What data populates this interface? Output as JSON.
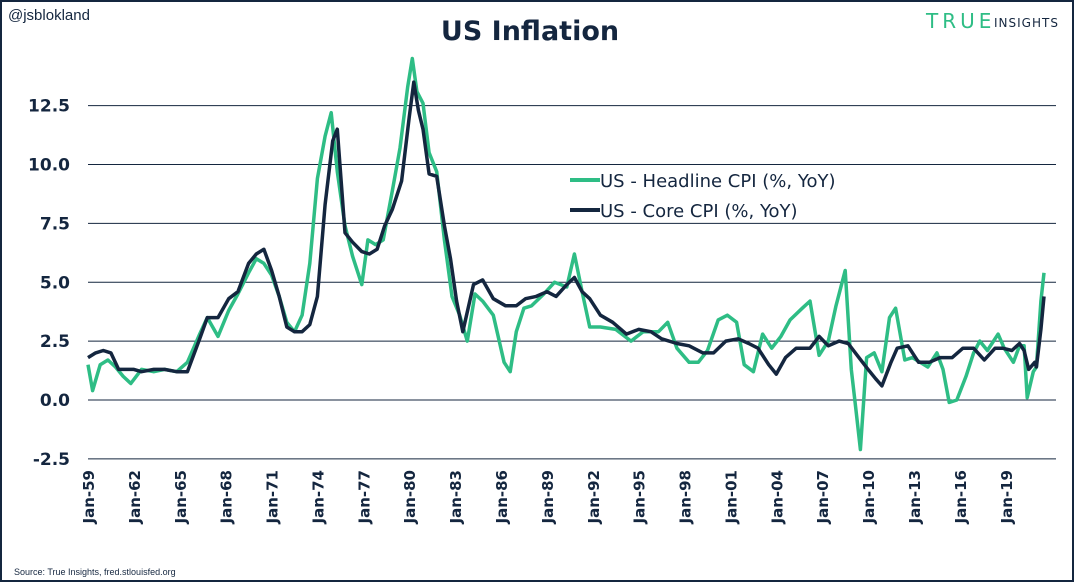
{
  "chart_data": {
    "type": "line",
    "title": "US Inflation",
    "handle": "@jsblokland",
    "logo": {
      "primary": "TRUE",
      "secondary": "INSIGHTS"
    },
    "source": "Source: True Insights, fred.stlouisfed.org",
    "ylim": [
      -2.5,
      15
    ],
    "yticks": [
      -2.5,
      0.0,
      2.5,
      5.0,
      7.5,
      10.0,
      12.5
    ],
    "ytick_labels": [
      "-2.5",
      "0.0",
      "2.5",
      "5.0",
      "7.5",
      "10.0",
      "12.5"
    ],
    "xlim": [
      1959,
      2021.5
    ],
    "xticks": [
      1959,
      1962,
      1965,
      1968,
      1971,
      1974,
      1977,
      1980,
      1983,
      1986,
      1989,
      1992,
      1995,
      1998,
      2001,
      2004,
      2007,
      2010,
      2013,
      2016,
      2019
    ],
    "xtick_labels": [
      "Jan-59",
      "Jan-62",
      "Jan-65",
      "Jan-68",
      "Jan-71",
      "Jan-74",
      "Jan-77",
      "Jan-80",
      "Jan-83",
      "Jan-86",
      "Jan-89",
      "Jan-92",
      "Jan-95",
      "Jan-98",
      "Jan-01",
      "Jan-04",
      "Jan-07",
      "Jan-10",
      "Jan-13",
      "Jan-16",
      "Jan-19"
    ],
    "grid": "horizontal",
    "legend_position": "center-right",
    "colors": {
      "headline": "#2ebd85",
      "core": "#14263f"
    },
    "series": [
      {
        "name": "US - Headline CPI (%, YoY)",
        "key": "headline",
        "x": [
          1959,
          1959.3,
          1959.8,
          1960.3,
          1960.8,
          1961.3,
          1961.8,
          1962.5,
          1963.3,
          1964,
          1964.8,
          1965.5,
          1966.3,
          1966.8,
          1967.5,
          1968.2,
          1968.8,
          1969.5,
          1970,
          1970.5,
          1971,
          1971.5,
          1972,
          1972.5,
          1973,
          1973.5,
          1974,
          1974.5,
          1974.9,
          1975.3,
          1975.8,
          1976.3,
          1976.9,
          1977.3,
          1977.8,
          1978.3,
          1978.9,
          1979.4,
          1979.9,
          1980.2,
          1980.5,
          1980.9,
          1981.3,
          1981.8,
          1982.3,
          1982.8,
          1983.3,
          1983.8,
          1984.3,
          1984.8,
          1985.5,
          1986.2,
          1986.6,
          1987,
          1987.5,
          1988,
          1988.8,
          1989.5,
          1990.3,
          1990.8,
          1991.3,
          1991.8,
          1992.5,
          1993.5,
          1994.5,
          1995.3,
          1996.3,
          1996.9,
          1997.5,
          1998.3,
          1998.9,
          1999.5,
          2000.2,
          2000.8,
          2001.4,
          2001.9,
          2002.5,
          2003.1,
          2003.7,
          2004.3,
          2004.9,
          2005.7,
          2006.2,
          2006.8,
          2007.4,
          2007.9,
          2008.5,
          2008.9,
          2009.2,
          2009.5,
          2009.9,
          2010.4,
          2010.9,
          2011.4,
          2011.8,
          2012.4,
          2012.9,
          2013.4,
          2013.9,
          2014.5,
          2014.9,
          2015.3,
          2015.8,
          2016.4,
          2016.9,
          2017.3,
          2017.8,
          2018.5,
          2018.9,
          2019.5,
          2019.9,
          2020.2,
          2020.4,
          2020.8,
          2021,
          2021.3,
          2021.5
        ],
        "values": [
          1.5,
          0.4,
          1.5,
          1.7,
          1.4,
          1.0,
          0.7,
          1.3,
          1.2,
          1.3,
          1.2,
          1.6,
          2.8,
          3.5,
          2.7,
          3.8,
          4.5,
          5.4,
          6.0,
          5.8,
          5.3,
          4.4,
          3.3,
          2.9,
          3.6,
          5.8,
          9.4,
          11.2,
          12.2,
          9.7,
          7.4,
          6.1,
          4.9,
          6.8,
          6.6,
          6.8,
          8.9,
          10.7,
          13.3,
          14.5,
          13.1,
          12.6,
          10.5,
          9.7,
          6.8,
          4.4,
          3.6,
          2.5,
          4.5,
          4.2,
          3.6,
          1.6,
          1.2,
          2.9,
          3.9,
          4.0,
          4.5,
          5.0,
          4.8,
          6.2,
          4.6,
          3.1,
          3.1,
          3.0,
          2.5,
          2.9,
          2.9,
          3.3,
          2.2,
          1.6,
          1.6,
          2.1,
          3.4,
          3.6,
          3.3,
          1.5,
          1.2,
          2.8,
          2.2,
          2.7,
          3.4,
          3.9,
          4.2,
          1.9,
          2.5,
          4.0,
          5.5,
          1.3,
          -0.4,
          -2.1,
          1.8,
          2.0,
          1.2,
          3.5,
          3.9,
          1.7,
          1.8,
          1.6,
          1.4,
          2.0,
          1.3,
          -0.1,
          0.0,
          1.0,
          2.0,
          2.5,
          2.1,
          2.8,
          2.2,
          1.6,
          2.3,
          2.3,
          0.1,
          1.2,
          1.4,
          4.2,
          5.4
        ]
      },
      {
        "name": "US - Core CPI (%, YoY)",
        "key": "core",
        "x": [
          1959,
          1959.5,
          1960,
          1960.5,
          1961,
          1961.5,
          1962,
          1962.5,
          1963.3,
          1964,
          1964.8,
          1965.5,
          1966.3,
          1966.8,
          1967.5,
          1968.2,
          1968.8,
          1969.5,
          1970,
          1970.5,
          1971,
          1971.5,
          1972,
          1972.5,
          1973,
          1973.5,
          1974,
          1974.5,
          1975,
          1975.3,
          1975.8,
          1976.3,
          1976.9,
          1977.4,
          1977.9,
          1978.4,
          1978.9,
          1979.5,
          1980,
          1980.3,
          1980.6,
          1980.9,
          1981.3,
          1981.8,
          1982.3,
          1982.7,
          1983.1,
          1983.5,
          1984.2,
          1984.8,
          1985.5,
          1986.3,
          1987,
          1987.6,
          1988.3,
          1989,
          1989.6,
          1990.3,
          1990.8,
          1991.3,
          1991.8,
          1992.5,
          1993.3,
          1994.2,
          1995,
          1995.8,
          1996.5,
          1997.5,
          1998.3,
          1999.2,
          1999.9,
          2000.7,
          2001.5,
          2002.2,
          2002.8,
          2003.5,
          2004,
          2004.6,
          2005.3,
          2006.2,
          2006.8,
          2007.4,
          2008.1,
          2008.7,
          2009.4,
          2010,
          2010.5,
          2010.9,
          2011.5,
          2011.9,
          2012.6,
          2013.3,
          2014,
          2014.7,
          2015.5,
          2016.2,
          2016.9,
          2017.6,
          2018.3,
          2018.8,
          2019.4,
          2019.9,
          2020.2,
          2020.5,
          2020.9,
          2021,
          2021.3,
          2021.5
        ],
        "values": [
          1.8,
          2.0,
          2.1,
          2.0,
          1.3,
          1.3,
          1.3,
          1.2,
          1.3,
          1.3,
          1.2,
          1.2,
          2.6,
          3.5,
          3.5,
          4.3,
          4.6,
          5.8,
          6.2,
          6.4,
          5.5,
          4.4,
          3.1,
          2.9,
          2.9,
          3.2,
          4.4,
          8.3,
          11.0,
          11.5,
          7.1,
          6.7,
          6.3,
          6.2,
          6.4,
          7.4,
          8.1,
          9.3,
          12.0,
          13.5,
          12.3,
          11.5,
          9.6,
          9.5,
          7.4,
          6.0,
          4.2,
          2.9,
          4.9,
          5.1,
          4.3,
          4.0,
          4.0,
          4.3,
          4.4,
          4.6,
          4.4,
          4.9,
          5.2,
          4.6,
          4.3,
          3.6,
          3.3,
          2.8,
          3.0,
          2.9,
          2.6,
          2.4,
          2.3,
          2.0,
          2.0,
          2.5,
          2.6,
          2.4,
          2.2,
          1.5,
          1.1,
          1.8,
          2.2,
          2.2,
          2.7,
          2.3,
          2.5,
          2.4,
          1.8,
          1.3,
          0.9,
          0.6,
          1.6,
          2.2,
          2.3,
          1.6,
          1.6,
          1.8,
          1.8,
          2.2,
          2.2,
          1.7,
          2.2,
          2.2,
          2.1,
          2.4,
          2.1,
          1.3,
          1.6,
          1.4,
          3.0,
          4.4
        ]
      }
    ]
  }
}
